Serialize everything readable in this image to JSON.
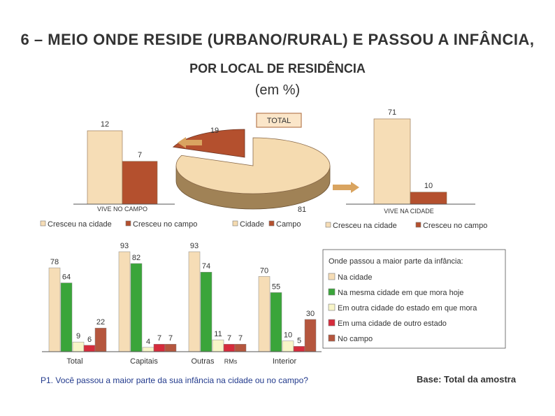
{
  "title": {
    "line1": "6 – MEIO ONDE RESIDE (URBANO/RURAL) E PASSOU A INFÂNCIA,",
    "line2": "POR LOCAL DE RESIDÊNCIA",
    "line3": "(em %)"
  },
  "colors": {
    "cidade_cream": "#f6ddb6",
    "campo_brown": "#b4502e",
    "mesma_green": "#3aa53a",
    "outra_yellow": "#f8f5c8",
    "estado_red": "#d62c3c",
    "campo2_brown": "#b5563e",
    "pie_cream": "#f5dbb0",
    "pie_side": "#a08256",
    "arrow": "#d9a460"
  },
  "chart_data": [
    {
      "type": "bar",
      "title": "",
      "xlabel": "VIVE NO CAMPO",
      "categories": [
        "Cresceu na cidade",
        "Cresceu no campo"
      ],
      "values": [
        12,
        7
      ]
    },
    {
      "type": "pie",
      "title": "TOTAL",
      "categories": [
        "Cidade",
        "Campo"
      ],
      "values": [
        81,
        19
      ]
    },
    {
      "type": "bar",
      "title": "",
      "xlabel": "VIVE NA CIDADE",
      "categories": [
        "Cresceu na cidade",
        "Cresceu no campo"
      ],
      "values": [
        71,
        10
      ]
    },
    {
      "type": "bar",
      "title": "",
      "categories": [
        "Total",
        "Capitais",
        "Outras",
        "Interior"
      ],
      "category_suffix": [
        "",
        "",
        "RMs",
        ""
      ],
      "legend_title": "Onde passou a maior parte da infância:",
      "series": [
        {
          "name": "Na cidade",
          "values": [
            78,
            93,
            93,
            70
          ]
        },
        {
          "name": "Na mesma cidade em que mora hoje",
          "values": [
            64,
            82,
            74,
            55
          ]
        },
        {
          "name": "Em outra cidade do estado em que mora",
          "values": [
            9,
            4,
            11,
            10
          ]
        },
        {
          "name": "Em uma cidade de outro estado",
          "values": [
            6,
            7,
            7,
            5
          ]
        },
        {
          "name": "No campo",
          "values": [
            22,
            7,
            7,
            30
          ]
        }
      ]
    }
  ],
  "legend_top_left": [
    "Cresceu na cidade",
    "Cresceu no campo",
    "Cidade",
    "Campo"
  ],
  "legend_top_right": [
    "Cresceu na cidade",
    "Cresceu no campo"
  ],
  "footer": {
    "question": "P1. Você passou a maior parte da sua infância na cidade ou no campo?",
    "base": "Base: Total da amostra"
  }
}
